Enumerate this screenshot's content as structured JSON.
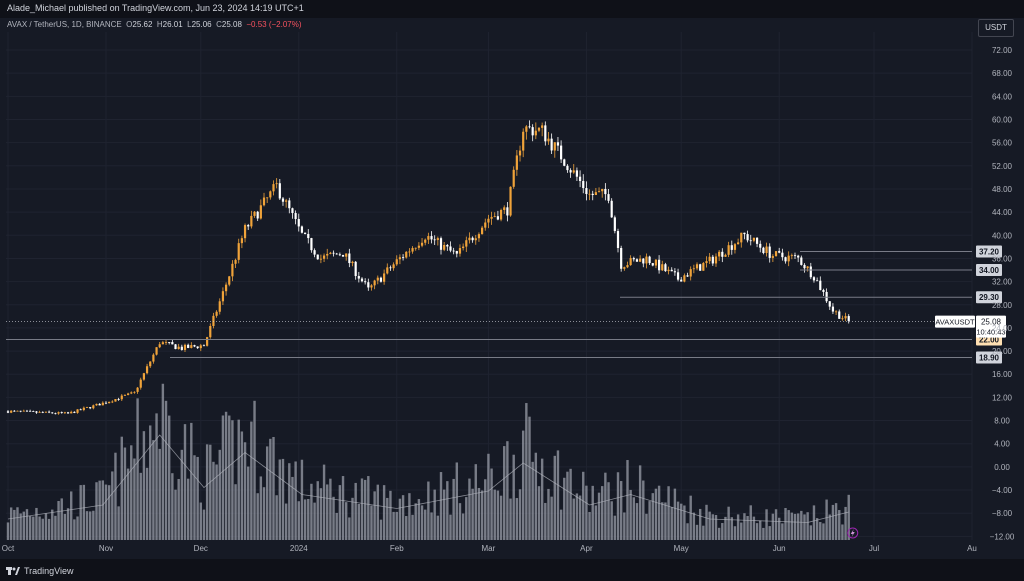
{
  "header": {
    "publisher": "Alade_Michael published on TradingView.com, Jun 23, 2024 14:19 UTC+1",
    "symbol": "AVAX / TetherUS, 1D, BINANCE",
    "o_label": "O",
    "o_value": "25.62",
    "h_label": "H",
    "h_value": "26.01",
    "l_label": "L",
    "l_value": "25.06",
    "c_label": "C",
    "c_value": "25.08",
    "change": "−0.53 (−2.07%)",
    "currency": "USDT"
  },
  "footer": {
    "brand": "TradingView"
  },
  "colors": {
    "up": "#f0a33a",
    "down": "#ffffff",
    "background": "#161a25",
    "grid": "#1f2330",
    "volume": "#9a9ea8",
    "level_line": "#787b86",
    "change_negative": "#f7525f"
  },
  "chart_data": {
    "type": "candlestick",
    "y_ticks": [
      "72.00",
      "68.00",
      "64.00",
      "60.00",
      "56.00",
      "52.00",
      "48.00",
      "44.00",
      "40.00",
      "36.00",
      "32.00",
      "28.00",
      "24.00",
      "20.00",
      "16.00",
      "12.00",
      "8.00",
      "4.00",
      "0.00",
      "−4.00",
      "−8.00",
      "−12.00"
    ],
    "ylim": [
      -12,
      72
    ],
    "x_ticks": [
      "Oct",
      "Nov",
      "Dec",
      "2024",
      "Feb",
      "Mar",
      "Apr",
      "May",
      "Jun",
      "Jul",
      "Au"
    ],
    "levels": [
      {
        "label": "37.20",
        "value": 37.2
      },
      {
        "label": "34.00",
        "value": 34.0
      },
      {
        "label": "29.30",
        "value": 29.3
      },
      {
        "label": "22.00",
        "value": 22.0
      },
      {
        "label": "18.90",
        "value": 18.9
      }
    ],
    "last_price": {
      "symbol": "AVAXUSDT",
      "value": "25.08",
      "countdown": "10:40:43"
    },
    "close_path": [
      [
        "2023-10-01",
        9.6
      ],
      [
        "2023-10-10",
        9.4
      ],
      [
        "2023-10-20",
        9.2
      ],
      [
        "2023-10-31",
        11.0
      ],
      [
        "2023-11-10",
        12.8
      ],
      [
        "2023-11-18",
        21.5
      ],
      [
        "2023-11-25",
        20.5
      ],
      [
        "2023-12-02",
        21.0
      ],
      [
        "2023-12-08",
        30.0
      ],
      [
        "2023-12-15",
        41.0
      ],
      [
        "2023-12-25",
        48.5
      ],
      [
        "2024-01-02",
        40.0
      ],
      [
        "2024-01-08",
        36.0
      ],
      [
        "2024-01-15",
        37.0
      ],
      [
        "2024-01-23",
        30.5
      ],
      [
        "2024-02-01",
        35.5
      ],
      [
        "2024-02-10",
        40.0
      ],
      [
        "2024-02-20",
        36.5
      ],
      [
        "2024-03-01",
        43.0
      ],
      [
        "2024-03-07",
        44.5
      ],
      [
        "2024-03-12",
        58.5
      ],
      [
        "2024-03-18",
        58.0
      ],
      [
        "2024-03-25",
        53.0
      ],
      [
        "2024-04-02",
        47.0
      ],
      [
        "2024-04-08",
        47.0
      ],
      [
        "2024-04-12",
        35.0
      ],
      [
        "2024-04-20",
        36.0
      ],
      [
        "2024-04-30",
        32.5
      ],
      [
        "2024-05-10",
        35.5
      ],
      [
        "2024-05-21",
        40.0
      ],
      [
        "2024-05-30",
        36.5
      ],
      [
        "2024-06-07",
        36.0
      ],
      [
        "2024-06-12",
        33.0
      ],
      [
        "2024-06-18",
        27.0
      ],
      [
        "2024-06-23",
        25.08
      ]
    ],
    "volume_path": [
      [
        "2023-10-01",
        6
      ],
      [
        "2023-10-31",
        10
      ],
      [
        "2023-11-18",
        30
      ],
      [
        "2023-12-02",
        15
      ],
      [
        "2023-12-15",
        25
      ],
      [
        "2024-01-02",
        13
      ],
      [
        "2024-02-01",
        9
      ],
      [
        "2024-03-01",
        14
      ],
      [
        "2024-03-12",
        22
      ],
      [
        "2024-04-02",
        10
      ],
      [
        "2024-04-15",
        13
      ],
      [
        "2024-05-10",
        6
      ],
      [
        "2024-06-10",
        5
      ],
      [
        "2024-06-23",
        8
      ]
    ]
  }
}
